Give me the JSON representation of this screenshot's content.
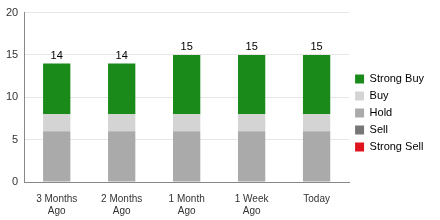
{
  "chart_data": {
    "type": "bar",
    "stacked": true,
    "categories": [
      "3 Months Ago",
      "2 Months Ago",
      "1 Month Ago",
      "1 Week Ago",
      "Today"
    ],
    "series": [
      {
        "name": "Strong Buy",
        "color": "#1a8a1a",
        "values": [
          6,
          6,
          7,
          7,
          7
        ]
      },
      {
        "name": "Buy",
        "color": "#d4d4d4",
        "values": [
          2,
          2,
          2,
          2,
          2
        ]
      },
      {
        "name": "Hold",
        "color": "#aaaaaa",
        "values": [
          6,
          6,
          6,
          6,
          6
        ]
      },
      {
        "name": "Sell",
        "color": "#777777",
        "values": [
          0,
          0,
          0,
          0,
          0
        ]
      },
      {
        "name": "Strong Sell",
        "color": "#e0141e",
        "values": [
          0,
          0,
          0,
          0,
          0
        ]
      }
    ],
    "total_labels": [
      14,
      14,
      15,
      15,
      15
    ],
    "ylim": [
      0,
      20
    ],
    "yticks": [
      0,
      5,
      10,
      15,
      20
    ],
    "grid": true,
    "legend": "right"
  }
}
